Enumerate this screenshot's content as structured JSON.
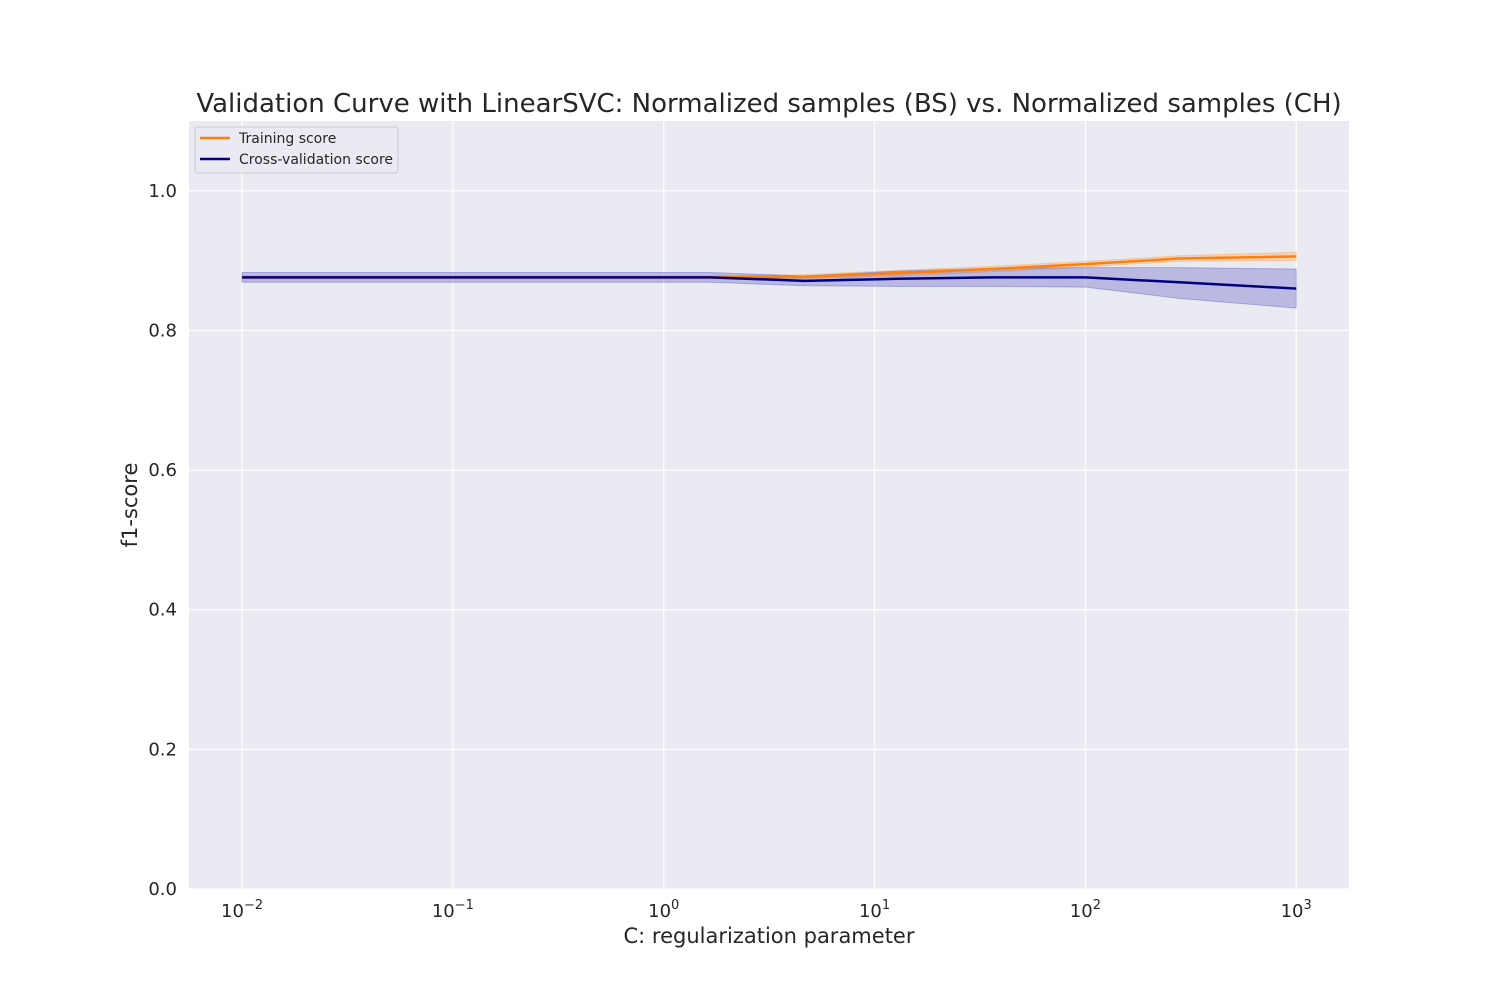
{
  "chart_data": {
    "type": "line",
    "title": "Validation Curve with LinearSVC: Normalized samples (BS) vs. Normalized samples (CH)",
    "xlabel": "C: regularization parameter",
    "ylabel": "f1-score",
    "xscale": "log",
    "xlim": [
      0.0056,
      1780
    ],
    "ylim": [
      0.0,
      1.1
    ],
    "grid": true,
    "legend_position": "top-left",
    "x_ticks": [
      {
        "value": 0.01,
        "base": "10",
        "exp": "−2"
      },
      {
        "value": 0.1,
        "base": "10",
        "exp": "−1"
      },
      {
        "value": 1,
        "base": "10",
        "exp": "0"
      },
      {
        "value": 10,
        "base": "10",
        "exp": "1"
      },
      {
        "value": 100,
        "base": "10",
        "exp": "2"
      },
      {
        "value": 1000,
        "base": "10",
        "exp": "3"
      }
    ],
    "y_ticks": [
      {
        "value": 0.0,
        "label": "0.0"
      },
      {
        "value": 0.2,
        "label": "0.2"
      },
      {
        "value": 0.4,
        "label": "0.4"
      },
      {
        "value": 0.6,
        "label": "0.6"
      },
      {
        "value": 0.8,
        "label": "0.8"
      },
      {
        "value": 1.0,
        "label": "1.0"
      }
    ],
    "x": [
      0.01,
      0.0278,
      0.0774,
      0.215,
      0.599,
      1.668,
      4.642,
      12.92,
      35.94,
      100.0,
      278.3,
      1000.0
    ],
    "series": [
      {
        "name": "Training score",
        "color": "#ff7f0e",
        "band_color": "#ff9f40",
        "values": [
          0.876,
          0.876,
          0.876,
          0.876,
          0.876,
          0.876,
          0.877,
          0.882,
          0.888,
          0.895,
          0.903,
          0.906
        ],
        "band_lower": [
          0.874,
          0.874,
          0.874,
          0.874,
          0.874,
          0.874,
          0.874,
          0.878,
          0.884,
          0.891,
          0.899,
          0.9
        ],
        "band_upper": [
          0.878,
          0.878,
          0.878,
          0.878,
          0.878,
          0.878,
          0.88,
          0.886,
          0.892,
          0.899,
          0.907,
          0.912
        ]
      },
      {
        "name": "Cross-validation score",
        "color": "#000080",
        "band_color": "#4a4ab8",
        "values": [
          0.876,
          0.876,
          0.876,
          0.876,
          0.876,
          0.876,
          0.871,
          0.874,
          0.876,
          0.876,
          0.869,
          0.86
        ],
        "band_lower": [
          0.869,
          0.869,
          0.869,
          0.869,
          0.869,
          0.869,
          0.864,
          0.863,
          0.863,
          0.862,
          0.846,
          0.832
        ],
        "band_upper": [
          0.883,
          0.883,
          0.883,
          0.883,
          0.883,
          0.883,
          0.878,
          0.885,
          0.889,
          0.89,
          0.89,
          0.888
        ]
      }
    ]
  }
}
